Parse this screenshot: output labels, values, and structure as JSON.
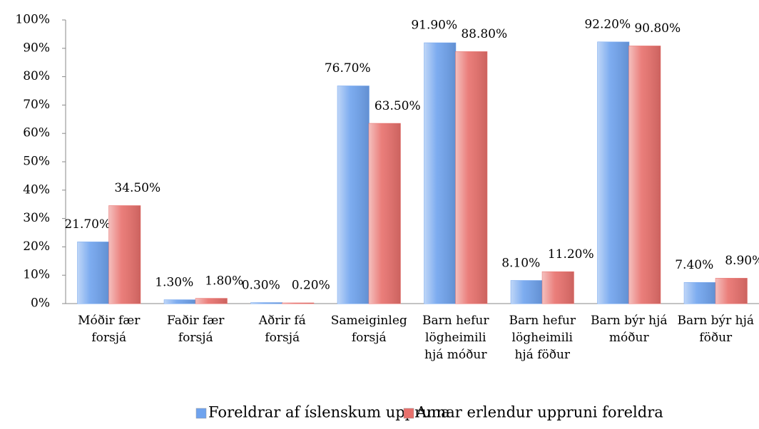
{
  "chart_data": {
    "type": "bar",
    "categories": [
      "Móðir fær\nforsjá",
      "Faðir fær\nforsjá",
      "Aðrir fá\nforsjá",
      "Sameiginleg\nforsjá",
      "Barn hefur\nlögheimili\nhjá móður",
      "Barn hefur\nlögheimili\nhjá föður",
      "Barn býr hjá\nmóður",
      "Barn býr hjá\nföður"
    ],
    "series": [
      {
        "name": "Foreldrar af íslenskum uppruna",
        "color": "#6fa3ee",
        "values": [
          21.7,
          1.3,
          0.3,
          76.7,
          91.9,
          8.1,
          92.2,
          7.4
        ],
        "value_labels": [
          "21.70%",
          "1.30%",
          "0.30%",
          "76.70%",
          "91.90%",
          "8.10%",
          "92.20%",
          "7.40%"
        ]
      },
      {
        "name": "Annar erlendur uppruni foreldra",
        "color": "#e8706c",
        "values": [
          34.5,
          1.8,
          0.2,
          63.5,
          88.8,
          11.2,
          90.8,
          8.9
        ],
        "value_labels": [
          "34.50%",
          "1.80%",
          "0.20%",
          "63.50%",
          "88.80%",
          "11.20%",
          "90.80%",
          "8.90%"
        ]
      }
    ],
    "ylim": [
      0,
      100
    ],
    "yticks": [
      {
        "value": 0,
        "label": "0%"
      },
      {
        "value": 10,
        "label": "10%"
      },
      {
        "value": 20,
        "label": "20%"
      },
      {
        "value": 30,
        "label": "30%"
      },
      {
        "value": 40,
        "label": "40%"
      },
      {
        "value": 50,
        "label": "50%"
      },
      {
        "value": 60,
        "label": "60%"
      },
      {
        "value": 70,
        "label": "70%"
      },
      {
        "value": 80,
        "label": "80%"
      },
      {
        "value": 90,
        "label": "90%"
      },
      {
        "value": 100,
        "label": "100%"
      }
    ],
    "legend": "bottom"
  }
}
